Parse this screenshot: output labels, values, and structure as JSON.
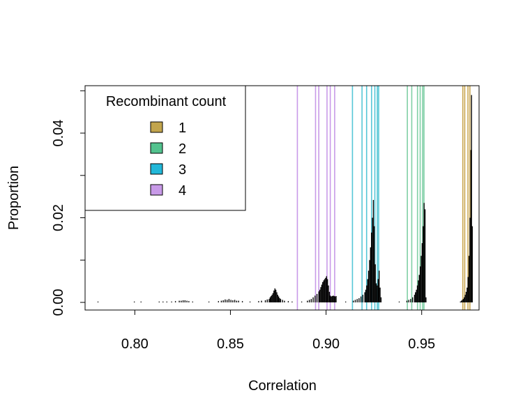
{
  "chart_data": {
    "type": "histogram",
    "xlabel": "Correlation",
    "ylabel": "Proportion",
    "xlim": [
      0.774,
      0.98
    ],
    "ylim": [
      -0.0018,
      0.0512
    ],
    "x_ticks": [
      {
        "value": 0.8,
        "label": "0.80"
      },
      {
        "value": 0.85,
        "label": "0.85"
      },
      {
        "value": 0.9,
        "label": "0.90"
      },
      {
        "value": 0.95,
        "label": "0.95"
      }
    ],
    "y_ticks": [
      {
        "value": 0.0,
        "label": "0.00"
      },
      {
        "value": 0.01,
        "label": ""
      },
      {
        "value": 0.02,
        "label": "0.02"
      },
      {
        "value": 0.03,
        "label": ""
      },
      {
        "value": 0.04,
        "label": "0.04"
      },
      {
        "value": 0.05,
        "label": ""
      }
    ],
    "legend": {
      "title": "Recombinant count",
      "position": "top-left",
      "entries": [
        {
          "label": "1",
          "color": "#c2a54d"
        },
        {
          "label": "2",
          "color": "#52c28e"
        },
        {
          "label": "3",
          "color": "#22b8d9"
        },
        {
          "label": "4",
          "color": "#c89ae8"
        }
      ]
    },
    "vlines": [
      {
        "count": "4",
        "color": "#c89ae8",
        "x": [
          0.885,
          0.8945,
          0.8962,
          0.9005,
          0.9022,
          0.9045
        ]
      },
      {
        "count": "3",
        "color": "#56c6d6",
        "x": [
          0.9138,
          0.9188,
          0.9212,
          0.9238,
          0.9255,
          0.9268,
          0.9275
        ]
      },
      {
        "count": "2",
        "color": "#7fcfa5",
        "x": [
          0.9425,
          0.9448,
          0.9478,
          0.9492,
          0.9505,
          0.9512
        ]
      },
      {
        "count": "1",
        "color": "#c9a650",
        "x": [
          0.9715,
          0.9725,
          0.9742,
          0.9752
        ]
      }
    ],
    "histogram": {
      "bin_width": 0.0005,
      "bins": [
        [
          0.7805,
          0.0002
        ],
        [
          0.7995,
          0.0002
        ],
        [
          0.803,
          0.0002
        ],
        [
          0.8125,
          0.0002
        ],
        [
          0.8145,
          0.0002
        ],
        [
          0.8165,
          0.0002
        ],
        [
          0.819,
          0.0002
        ],
        [
          0.821,
          0.0003
        ],
        [
          0.823,
          0.0004
        ],
        [
          0.824,
          0.0004
        ],
        [
          0.825,
          0.0005
        ],
        [
          0.826,
          0.0005
        ],
        [
          0.827,
          0.0004
        ],
        [
          0.828,
          0.0003
        ],
        [
          0.83,
          0.0002
        ],
        [
          0.8385,
          0.0002
        ],
        [
          0.8435,
          0.0003
        ],
        [
          0.845,
          0.0004
        ],
        [
          0.846,
          0.0005
        ],
        [
          0.847,
          0.0007
        ],
        [
          0.848,
          0.0006
        ],
        [
          0.849,
          0.0008
        ],
        [
          0.85,
          0.0006
        ],
        [
          0.851,
          0.0005
        ],
        [
          0.852,
          0.0006
        ],
        [
          0.853,
          0.0004
        ],
        [
          0.854,
          0.0004
        ],
        [
          0.856,
          0.0003
        ],
        [
          0.86,
          0.0002
        ],
        [
          0.8645,
          0.0003
        ],
        [
          0.866,
          0.0004
        ],
        [
          0.868,
          0.0005
        ],
        [
          0.869,
          0.0007
        ],
        [
          0.87,
          0.0008
        ],
        [
          0.8705,
          0.0012
        ],
        [
          0.871,
          0.0015
        ],
        [
          0.8715,
          0.0018
        ],
        [
          0.872,
          0.0022
        ],
        [
          0.8725,
          0.0028
        ],
        [
          0.873,
          0.0033
        ],
        [
          0.8735,
          0.003
        ],
        [
          0.874,
          0.0024
        ],
        [
          0.8745,
          0.0018
        ],
        [
          0.875,
          0.0014
        ],
        [
          0.8755,
          0.001
        ],
        [
          0.876,
          0.0008
        ],
        [
          0.877,
          0.0006
        ],
        [
          0.878,
          0.0004
        ],
        [
          0.88,
          0.0003
        ],
        [
          0.882,
          0.0002
        ],
        [
          0.887,
          0.0002
        ],
        [
          0.89,
          0.0004
        ],
        [
          0.891,
          0.0006
        ],
        [
          0.892,
          0.0008
        ],
        [
          0.893,
          0.0012
        ],
        [
          0.894,
          0.0016
        ],
        [
          0.895,
          0.002
        ],
        [
          0.896,
          0.0026
        ],
        [
          0.8965,
          0.003
        ],
        [
          0.897,
          0.0036
        ],
        [
          0.8975,
          0.0042
        ],
        [
          0.898,
          0.0048
        ],
        [
          0.8985,
          0.0052
        ],
        [
          0.899,
          0.0055
        ],
        [
          0.8995,
          0.0058
        ],
        [
          0.9,
          0.0062
        ],
        [
          0.9005,
          0.0055
        ],
        [
          0.901,
          0.004
        ],
        [
          0.9015,
          0.0025
        ],
        [
          0.902,
          0.0016
        ],
        [
          0.9025,
          0.0014
        ],
        [
          0.903,
          0.0015
        ],
        [
          0.9035,
          0.0016
        ],
        [
          0.904,
          0.0015
        ],
        [
          0.9045,
          0.0014
        ],
        [
          0.905,
          0.0015
        ],
        [
          0.91,
          0.0002
        ],
        [
          0.914,
          0.0004
        ],
        [
          0.915,
          0.0006
        ],
        [
          0.916,
          0.0008
        ],
        [
          0.917,
          0.001
        ],
        [
          0.918,
          0.0014
        ],
        [
          0.919,
          0.0018
        ],
        [
          0.92,
          0.0024
        ],
        [
          0.9205,
          0.003
        ],
        [
          0.921,
          0.004
        ],
        [
          0.9215,
          0.0055
        ],
        [
          0.922,
          0.0075
        ],
        [
          0.9225,
          0.01
        ],
        [
          0.923,
          0.013
        ],
        [
          0.9235,
          0.0165
        ],
        [
          0.924,
          0.02
        ],
        [
          0.9245,
          0.0242
        ],
        [
          0.925,
          0.018
        ],
        [
          0.9255,
          0.009
        ],
        [
          0.926,
          0.0045
        ],
        [
          0.9265,
          0.004
        ],
        [
          0.927,
          0.0055
        ],
        [
          0.9275,
          0.0075
        ],
        [
          0.928,
          0.0035
        ],
        [
          0.9285,
          0.0012
        ],
        [
          0.938,
          0.0002
        ],
        [
          0.942,
          0.0004
        ],
        [
          0.943,
          0.0006
        ],
        [
          0.944,
          0.0008
        ],
        [
          0.945,
          0.0012
        ],
        [
          0.946,
          0.0018
        ],
        [
          0.9465,
          0.0024
        ],
        [
          0.947,
          0.003
        ],
        [
          0.9475,
          0.004
        ],
        [
          0.948,
          0.0052
        ],
        [
          0.9485,
          0.0065
        ],
        [
          0.949,
          0.0085
        ],
        [
          0.9495,
          0.011
        ],
        [
          0.95,
          0.014
        ],
        [
          0.9505,
          0.018
        ],
        [
          0.951,
          0.0235
        ],
        [
          0.9515,
          0.022
        ],
        [
          0.952,
          0.0012
        ],
        [
          0.97,
          0.0002
        ],
        [
          0.9705,
          0.0004
        ],
        [
          0.971,
          0.0006
        ],
        [
          0.9715,
          0.0008
        ],
        [
          0.972,
          0.0012
        ],
        [
          0.9725,
          0.0018
        ],
        [
          0.973,
          0.0025
        ],
        [
          0.9735,
          0.0035
        ],
        [
          0.974,
          0.006
        ],
        [
          0.9745,
          0.011
        ],
        [
          0.975,
          0.02
        ],
        [
          0.9755,
          0.036
        ],
        [
          0.9758,
          0.049
        ],
        [
          0.9762,
          0.018
        ]
      ]
    }
  }
}
